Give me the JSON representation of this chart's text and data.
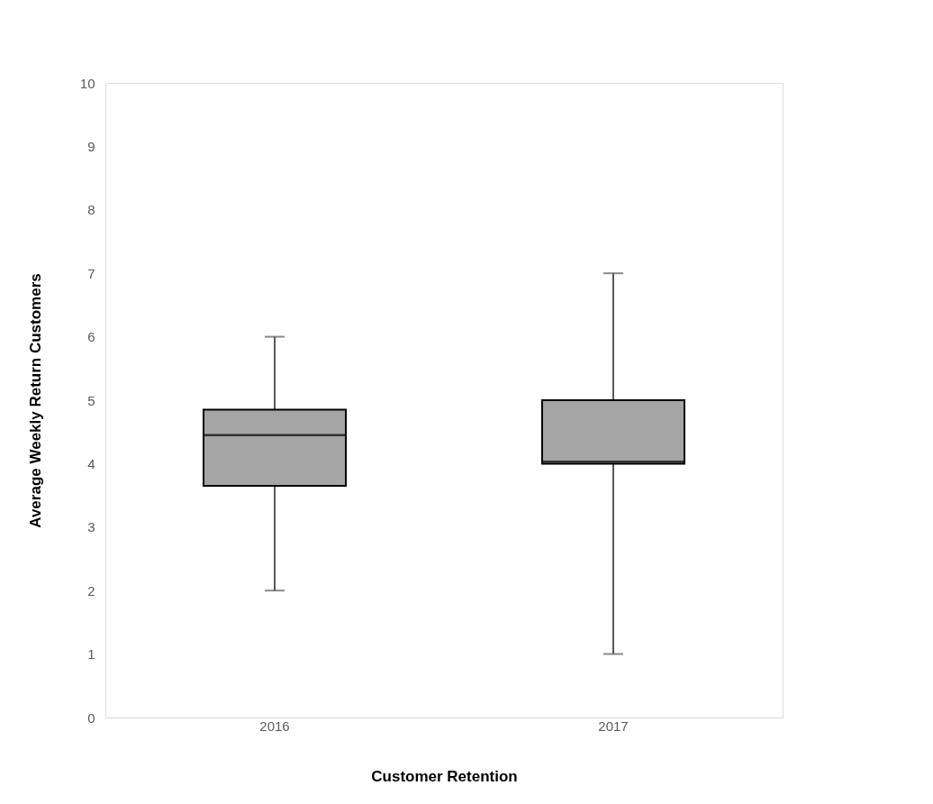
{
  "chart_data": {
    "type": "box",
    "xlabel": "Customer Retention",
    "ylabel": "Average  Weekly  Return Customers",
    "categories": [
      "2016",
      "2017"
    ],
    "boxes": [
      {
        "low": 2,
        "q1": 3.65,
        "median": 4.45,
        "q3": 4.85,
        "high": 6
      },
      {
        "low": 1,
        "q1": 4,
        "median": 4.03,
        "q3": 5,
        "high": 7
      }
    ],
    "color": "#a5a5a5",
    "ylim": [
      0,
      10
    ],
    "yticks": [
      0,
      1,
      2,
      3,
      4,
      5,
      6,
      7,
      8,
      9,
      10
    ],
    "grid": false
  }
}
